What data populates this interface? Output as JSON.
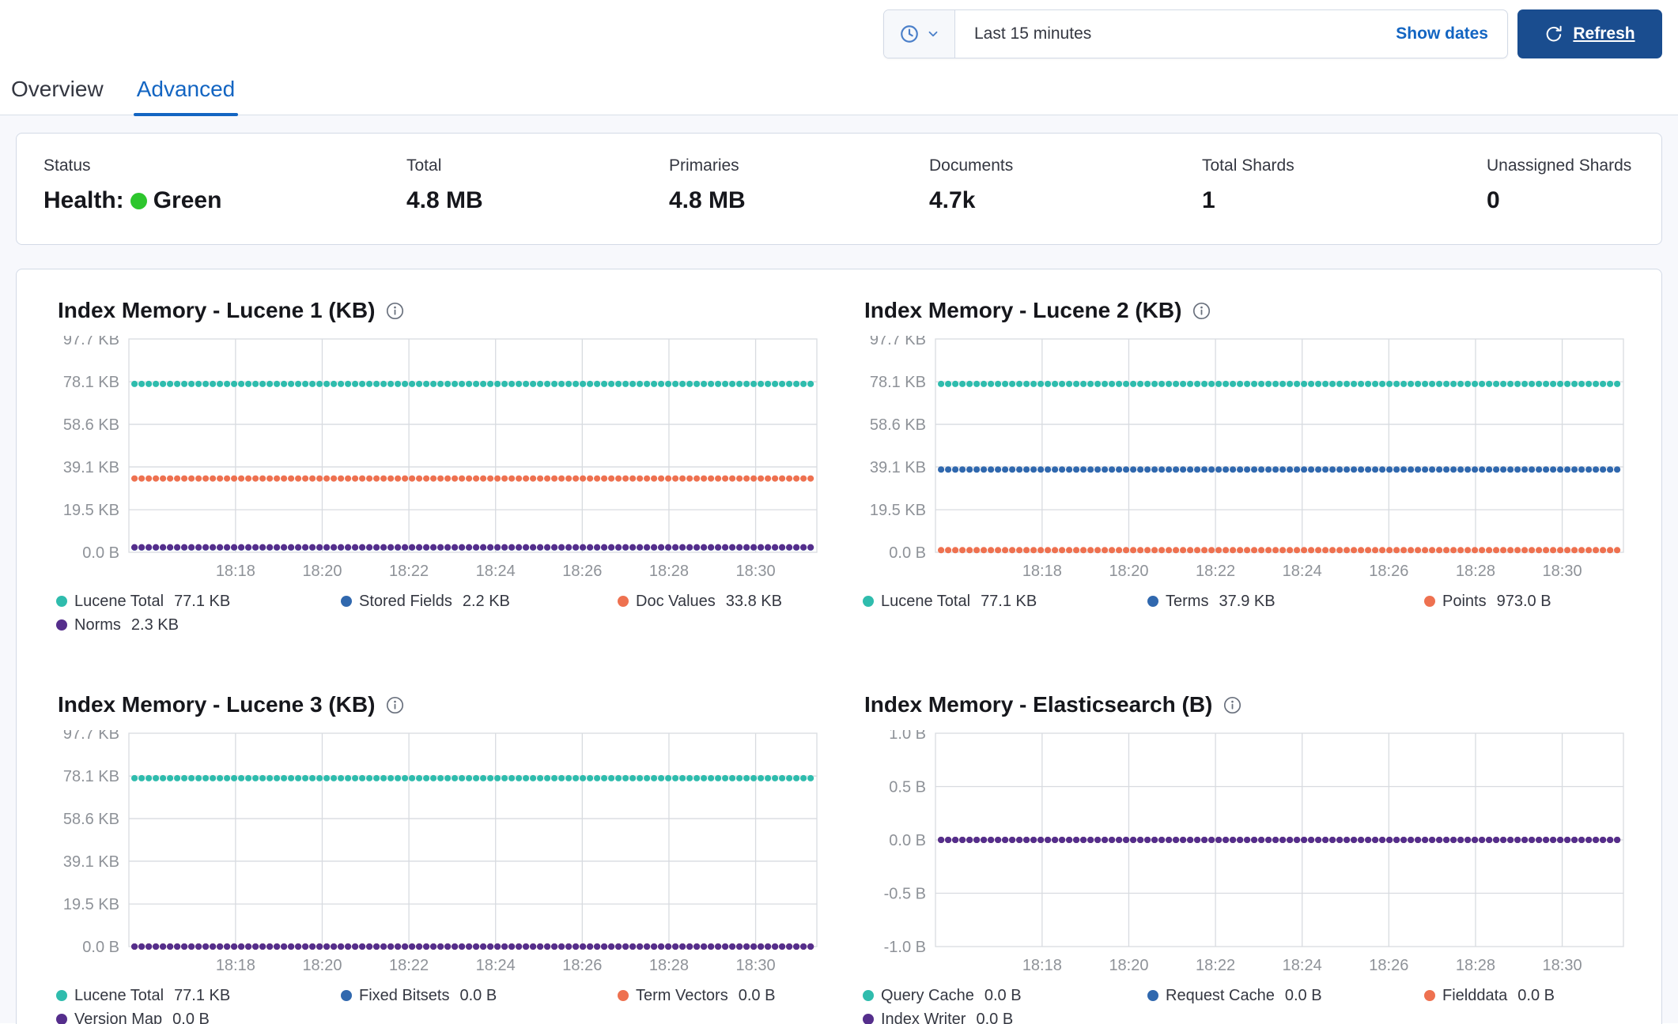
{
  "time_bar": {
    "selected_range": "Last 15 minutes",
    "show_dates_label": "Show dates",
    "refresh_label": "Refresh"
  },
  "tabs": [
    {
      "label": "Overview",
      "active": false
    },
    {
      "label": "Advanced",
      "active": true
    }
  ],
  "summary": {
    "health_prefix": "Health:",
    "items": [
      {
        "label": "Status",
        "value": "Green"
      },
      {
        "label": "Total",
        "value": "4.8 MB"
      },
      {
        "label": "Primaries",
        "value": "4.8 MB"
      },
      {
        "label": "Documents",
        "value": "4.7k"
      },
      {
        "label": "Total Shards",
        "value": "1"
      },
      {
        "label": "Unassigned Shards",
        "value": "0"
      }
    ]
  },
  "colors": {
    "teal": "#2FBCAD",
    "blue": "#3068AE",
    "orange": "#EE7150",
    "purple": "#552E8C",
    "health_green": "#2DC62D",
    "link_blue": "#1365C2",
    "refresh_button_bg": "#1A4D8F",
    "axis_text": "#8E9298",
    "grid_line": "#D8DBE0"
  },
  "chart_data": [
    {
      "type": "line",
      "title": "Index Memory - Lucene 1 (KB)",
      "ytick_labels": [
        "97.7 KB",
        "78.1 KB",
        "58.6 KB",
        "39.1 KB",
        "19.5 KB",
        "0.0 B"
      ],
      "ytick_values": [
        97.7,
        78.1,
        58.6,
        39.1,
        19.5,
        0
      ],
      "ylim": [
        0,
        97.7
      ],
      "x": [
        "18:18",
        "18:20",
        "18:22",
        "18:24",
        "18:26",
        "18:28",
        "18:30"
      ],
      "legend_position": "bottom",
      "grid": true,
      "series": [
        {
          "name": "Lucene Total",
          "value": 77.1,
          "label": "77.1 KB",
          "color": "teal"
        },
        {
          "name": "Stored Fields",
          "value": 2.2,
          "label": "2.2 KB",
          "color": "blue"
        },
        {
          "name": "Doc Values",
          "value": 33.8,
          "label": "33.8 KB",
          "color": "orange"
        },
        {
          "name": "Norms",
          "value": 2.3,
          "label": "2.3 KB",
          "color": "purple"
        }
      ]
    },
    {
      "type": "line",
      "title": "Index Memory - Lucene 2 (KB)",
      "ytick_labels": [
        "97.7 KB",
        "78.1 KB",
        "58.6 KB",
        "39.1 KB",
        "19.5 KB",
        "0.0 B"
      ],
      "ytick_values": [
        97.7,
        78.1,
        58.6,
        39.1,
        19.5,
        0
      ],
      "ylim": [
        0,
        97.7
      ],
      "x": [
        "18:18",
        "18:20",
        "18:22",
        "18:24",
        "18:26",
        "18:28",
        "18:30"
      ],
      "legend_position": "bottom",
      "grid": true,
      "series": [
        {
          "name": "Lucene Total",
          "value": 77.1,
          "label": "77.1 KB",
          "color": "teal"
        },
        {
          "name": "Terms",
          "value": 37.9,
          "label": "37.9 KB",
          "color": "blue"
        },
        {
          "name": "Points",
          "value": 0.973,
          "label": "973.0 B",
          "color": "orange"
        }
      ]
    },
    {
      "type": "line",
      "title": "Index Memory - Lucene 3 (KB)",
      "ytick_labels": [
        "97.7 KB",
        "78.1 KB",
        "58.6 KB",
        "39.1 KB",
        "19.5 KB",
        "0.0 B"
      ],
      "ytick_values": [
        97.7,
        78.1,
        58.6,
        39.1,
        19.5,
        0
      ],
      "ylim": [
        0,
        97.7
      ],
      "x": [
        "18:18",
        "18:20",
        "18:22",
        "18:24",
        "18:26",
        "18:28",
        "18:30"
      ],
      "legend_position": "bottom",
      "grid": true,
      "series": [
        {
          "name": "Lucene Total",
          "value": 77.1,
          "label": "77.1 KB",
          "color": "teal"
        },
        {
          "name": "Fixed Bitsets",
          "value": 0,
          "label": "0.0 B",
          "color": "blue"
        },
        {
          "name": "Term Vectors",
          "value": 0,
          "label": "0.0 B",
          "color": "orange"
        },
        {
          "name": "Version Map",
          "value": 0,
          "label": "0.0 B",
          "color": "purple"
        }
      ]
    },
    {
      "type": "line",
      "title": "Index Memory - Elasticsearch (B)",
      "ytick_labels": [
        "1.0 B",
        "0.5 B",
        "0.0 B",
        "-0.5 B",
        "-1.0 B"
      ],
      "ytick_values": [
        1,
        0.5,
        0,
        -0.5,
        -1
      ],
      "ylim": [
        -1,
        1
      ],
      "x": [
        "18:18",
        "18:20",
        "18:22",
        "18:24",
        "18:26",
        "18:28",
        "18:30"
      ],
      "legend_position": "bottom",
      "grid": true,
      "series": [
        {
          "name": "Query Cache",
          "value": 0,
          "label": "0.0 B",
          "color": "teal"
        },
        {
          "name": "Request Cache",
          "value": 0,
          "label": "0.0 B",
          "color": "blue"
        },
        {
          "name": "Fielddata",
          "value": 0,
          "label": "0.0 B",
          "color": "orange"
        },
        {
          "name": "Index Writer",
          "value": 0,
          "label": "0.0 B",
          "color": "purple"
        }
      ]
    }
  ]
}
